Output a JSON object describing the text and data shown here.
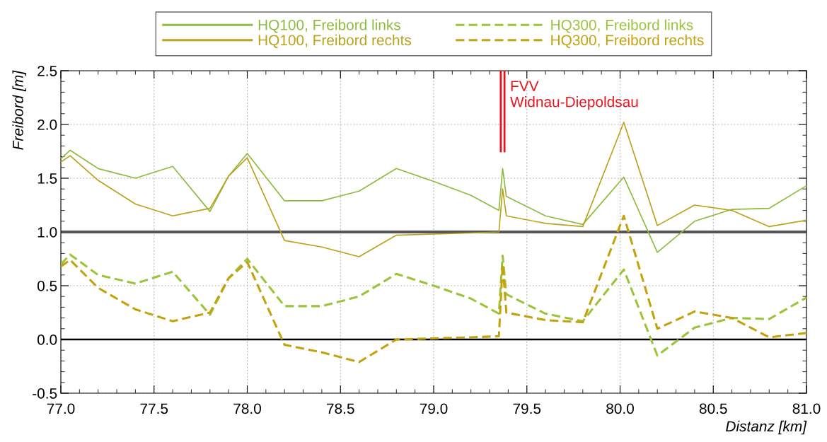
{
  "chart_data": {
    "type": "line",
    "xlabel": "Distanz [km]",
    "ylabel": "Freibord [m]",
    "x": [
      77.0,
      77.05,
      77.2,
      77.4,
      77.6,
      77.8,
      77.9,
      78.0,
      78.2,
      78.4,
      78.6,
      78.8,
      79.0,
      79.2,
      79.35,
      79.37,
      79.39,
      79.6,
      79.8,
      80.02,
      80.2,
      80.4,
      80.6,
      80.8,
      81.0
    ],
    "series": [
      {
        "name": "HQ100, Freibord links",
        "color": "#8dbb3e",
        "line_style": "solid",
        "values": [
          1.68,
          1.76,
          1.59,
          1.5,
          1.61,
          1.19,
          1.52,
          1.73,
          1.29,
          1.29,
          1.38,
          1.59,
          1.47,
          1.34,
          1.2,
          1.59,
          1.33,
          1.15,
          1.07,
          1.51,
          0.81,
          1.1,
          1.21,
          1.22,
          1.43
        ]
      },
      {
        "name": "HQ100, Freibord rechts",
        "color": "#bba21c",
        "line_style": "solid",
        "values": [
          1.65,
          1.71,
          1.48,
          1.26,
          1.15,
          1.22,
          1.52,
          1.69,
          0.92,
          0.86,
          0.77,
          0.97,
          0.98,
          0.99,
          1.0,
          1.4,
          1.15,
          1.08,
          1.05,
          2.02,
          1.06,
          1.25,
          1.2,
          1.05,
          1.11
        ]
      },
      {
        "name": "HQ300, Freibord links",
        "color": "#9bc43a",
        "line_style": "dashed",
        "values": [
          0.7,
          0.79,
          0.6,
          0.52,
          0.63,
          0.23,
          0.57,
          0.75,
          0.31,
          0.31,
          0.4,
          0.61,
          0.5,
          0.38,
          0.24,
          0.78,
          0.42,
          0.24,
          0.17,
          0.65,
          -0.15,
          0.11,
          0.2,
          0.19,
          0.39
        ]
      },
      {
        "name": "HQ300, Freibord rechts",
        "color": "#c4a20e",
        "line_style": "dashed",
        "values": [
          0.68,
          0.74,
          0.48,
          0.28,
          0.17,
          0.25,
          0.57,
          0.72,
          -0.05,
          -0.12,
          -0.21,
          0.0,
          0.01,
          0.02,
          0.03,
          0.7,
          0.25,
          0.18,
          0.16,
          1.15,
          0.1,
          0.26,
          0.2,
          0.02,
          0.06
        ]
      }
    ],
    "xlim": [
      77.0,
      81.0
    ],
    "xticks": [
      {
        "value": 77.0,
        "label": "77.0"
      },
      {
        "value": 77.5,
        "label": "77.5"
      },
      {
        "value": 78.0,
        "label": "78.0"
      },
      {
        "value": 78.5,
        "label": "78.5"
      },
      {
        "value": 79.0,
        "label": "79.0"
      },
      {
        "value": 79.5,
        "label": "79.5"
      },
      {
        "value": 80.0,
        "label": "80.0"
      },
      {
        "value": 80.5,
        "label": "80.5"
      },
      {
        "value": 81.0,
        "label": "81.0"
      }
    ],
    "ylim": [
      -0.5,
      2.5
    ],
    "yticks": [
      {
        "value": -0.5,
        "label": "-0.5"
      },
      {
        "value": 0.0,
        "label": "0.0"
      },
      {
        "value": 0.5,
        "label": "0.5"
      },
      {
        "value": 1.0,
        "label": "1.0"
      },
      {
        "value": 1.5,
        "label": "1.5"
      },
      {
        "value": 2.0,
        "label": "2.0"
      },
      {
        "value": 2.5,
        "label": "2.5"
      }
    ],
    "ref_lines": [
      {
        "axis": "y",
        "value": 1.0,
        "color": "#555555"
      },
      {
        "axis": "y",
        "value": 0.0,
        "color": "#000000"
      },
      {
        "axis": "x",
        "value": 79.37,
        "label": "FVV\nWidnau-Diepoldsau",
        "color": "#e8141c"
      }
    ],
    "grid": true,
    "legend": "top",
    "marker": "none"
  }
}
